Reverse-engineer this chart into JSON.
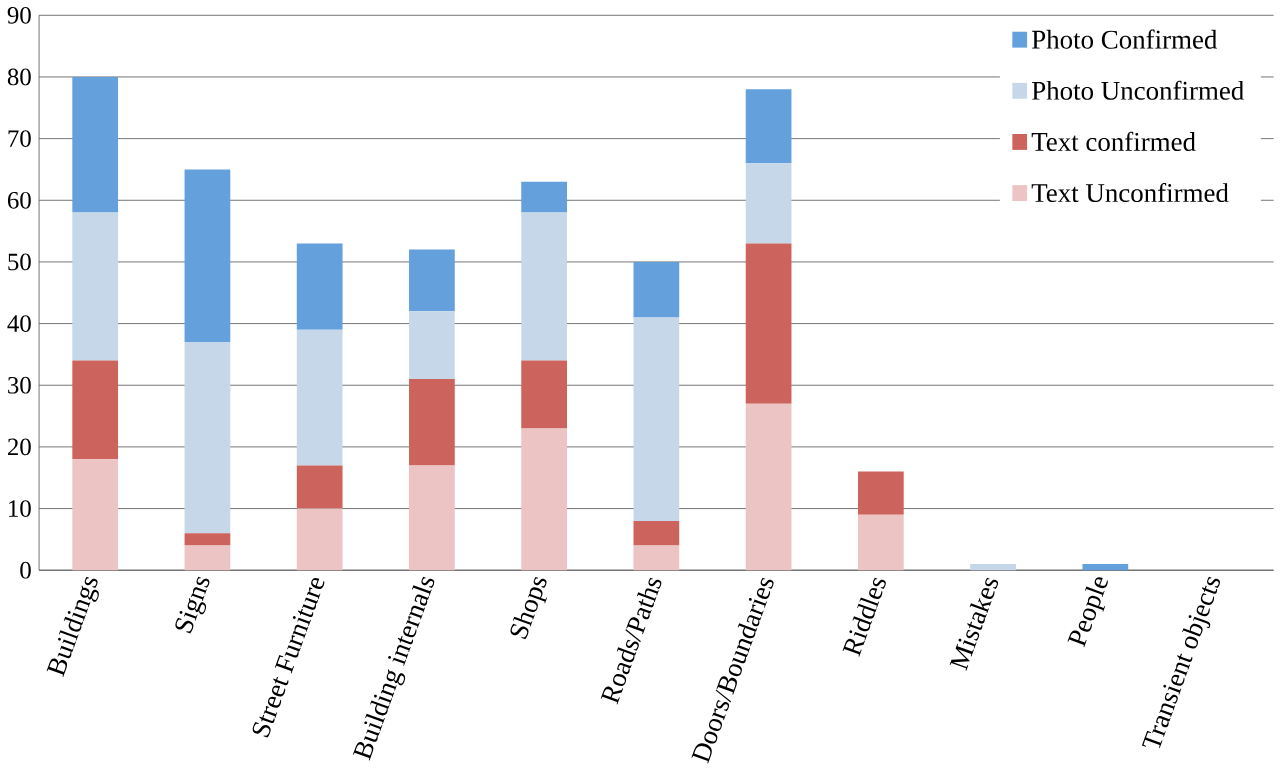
{
  "chart_data": {
    "type": "bar",
    "stacked": true,
    "categories": [
      "Buildings",
      "Signs",
      "Street Furniture",
      "Building internals",
      "Shops",
      "Roads/Paths",
      "Doors/Boundaries",
      "Riddles",
      "Mistakes",
      "People",
      "Transient objects"
    ],
    "series": [
      {
        "name": "Text Unconfirmed",
        "color": "#ebc4c3",
        "values": [
          18,
          4,
          10,
          17,
          23,
          4,
          27,
          9,
          0,
          0,
          0
        ]
      },
      {
        "name": "Text confirmed",
        "color": "#cc635c",
        "values": [
          16,
          2,
          7,
          14,
          11,
          4,
          26,
          7,
          0,
          0,
          0
        ]
      },
      {
        "name": "Photo Unconfirmed",
        "color": "#c5d7e8",
        "values": [
          24,
          31,
          22,
          11,
          24,
          33,
          13,
          0,
          1,
          0,
          0
        ]
      },
      {
        "name": "Photo Confirmed",
        "color": "#63a0dc",
        "values": [
          22,
          28,
          14,
          10,
          5,
          9,
          12,
          0,
          0,
          1,
          0
        ]
      }
    ],
    "ylim": [
      0,
      90
    ],
    "yticks": [
      0,
      10,
      20,
      30,
      40,
      50,
      60,
      70,
      80,
      90
    ],
    "grid": "y",
    "legend": "top right"
  }
}
